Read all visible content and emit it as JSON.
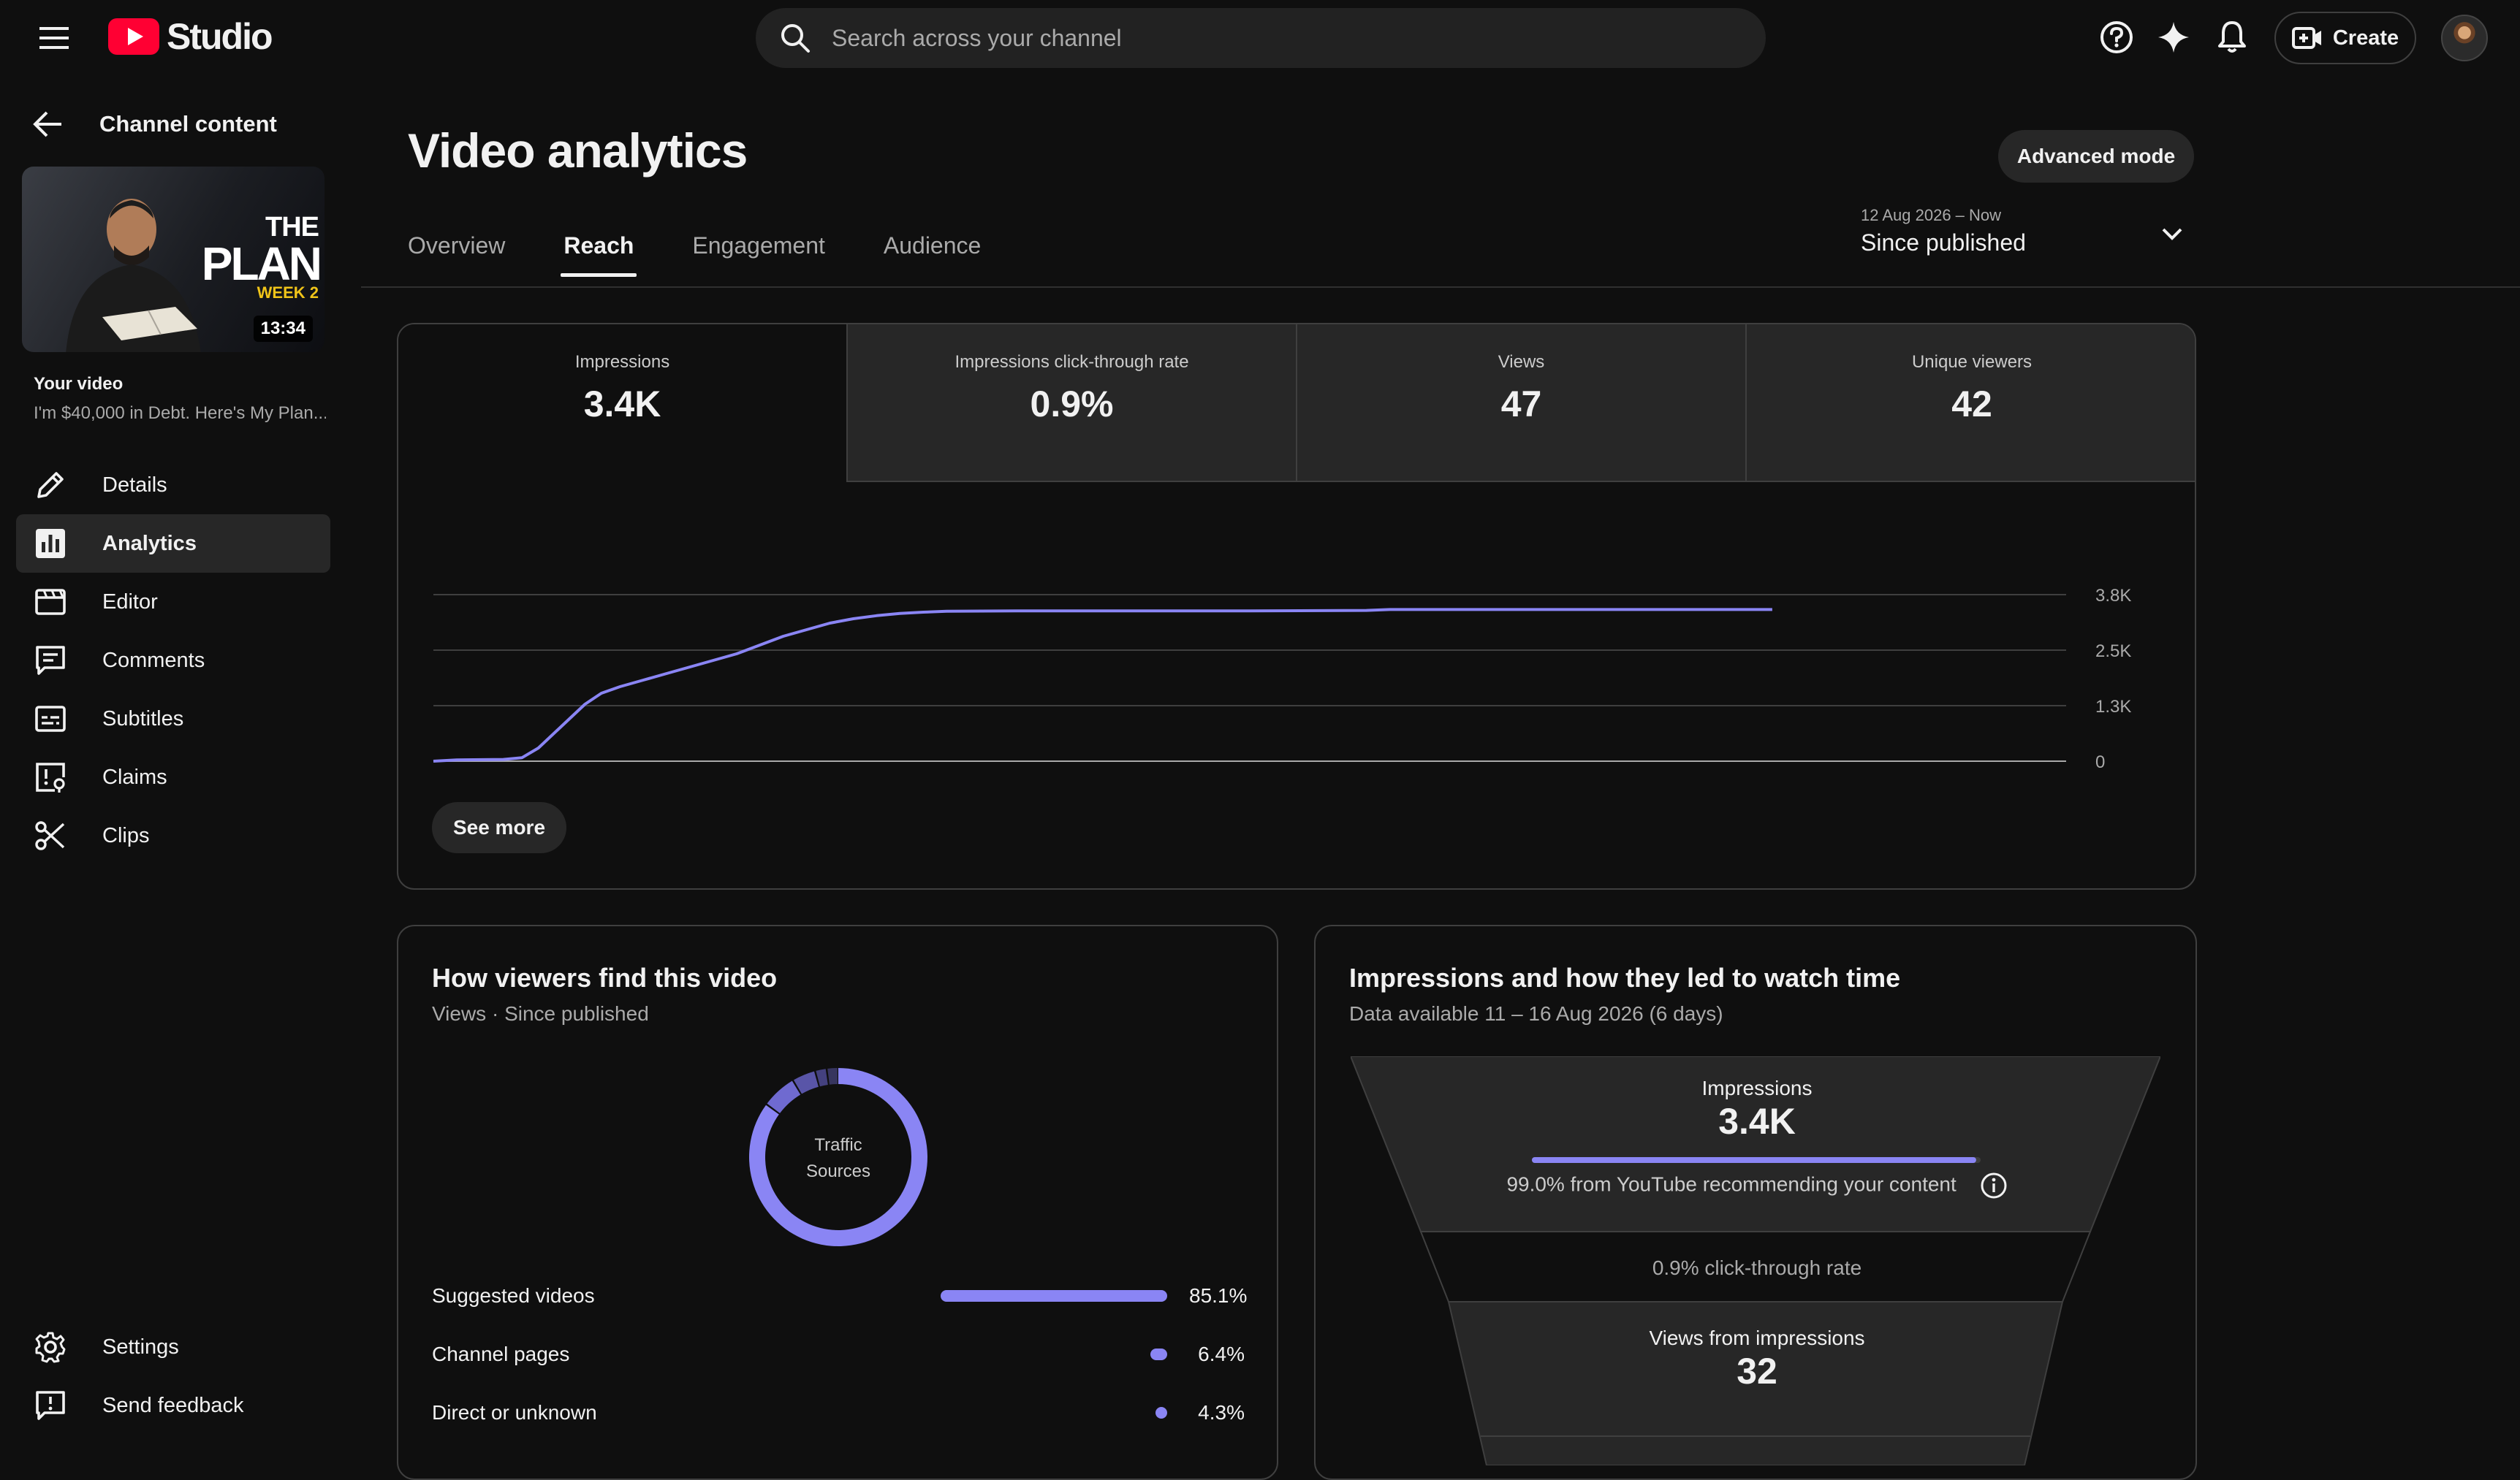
{
  "app": {
    "brand": "Studio",
    "search_placeholder": "Search across your channel",
    "create_label": "Create"
  },
  "sidebar": {
    "back_label": "Channel content",
    "thumbnail": {
      "line1": "THE",
      "line2": "PLAN",
      "line3": "WEEK 2",
      "duration": "13:34"
    },
    "your_video_label": "Your video",
    "video_title": "I'm $40,000 in Debt. Here's My Plan",
    "items": [
      {
        "label": "Details",
        "icon": "pencil-icon",
        "active": false
      },
      {
        "label": "Analytics",
        "icon": "analytics-icon",
        "active": true
      },
      {
        "label": "Editor",
        "icon": "editor-icon",
        "active": false
      },
      {
        "label": "Comments",
        "icon": "comments-icon",
        "active": false
      },
      {
        "label": "Subtitles",
        "icon": "subtitles-icon",
        "active": false
      },
      {
        "label": "Claims",
        "icon": "claims-icon",
        "active": false
      },
      {
        "label": "Clips",
        "icon": "scissors-icon",
        "active": false
      }
    ],
    "bottom_items": [
      {
        "label": "Settings",
        "icon": "gear-icon"
      },
      {
        "label": "Send feedback",
        "icon": "feedback-icon"
      }
    ]
  },
  "main": {
    "title": "Video analytics",
    "advanced_mode_label": "Advanced mode",
    "tabs": [
      {
        "label": "Overview",
        "active": false
      },
      {
        "label": "Reach",
        "active": true
      },
      {
        "label": "Engagement",
        "active": false
      },
      {
        "label": "Audience",
        "active": false
      }
    ],
    "date_range": {
      "small": "12 Aug 2026 – Now",
      "big": "Since published"
    }
  },
  "reach": {
    "metrics": [
      {
        "label": "Impressions",
        "value": "3.4K",
        "selected": true
      },
      {
        "label": "Impressions click-through rate",
        "value": "0.9%",
        "selected": false
      },
      {
        "label": "Views",
        "value": "47",
        "selected": false
      },
      {
        "label": "Unique viewers",
        "value": "42",
        "selected": false
      }
    ],
    "see_more_label": "See more"
  },
  "chart_data": {
    "type": "line",
    "title": "",
    "xlabel": "",
    "ylabel": "",
    "xlim": [
      0,
      7
    ],
    "ylim": [
      0,
      3800
    ],
    "x_ticks": [
      "0",
      "1",
      "2",
      "3",
      "4",
      "5",
      "6",
      "7 days"
    ],
    "y_ticks": [
      {
        "value": 0,
        "label": "0"
      },
      {
        "value": 1267,
        "label": "1.3K"
      },
      {
        "value": 2533,
        "label": "2.5K"
      },
      {
        "value": 3800,
        "label": "3.8K"
      }
    ],
    "grid": true,
    "series": [
      {
        "color": "#8a85f4",
        "x": [
          0,
          0.1,
          0.3,
          0.38,
          0.45,
          0.55,
          0.65,
          0.72,
          0.8,
          0.9,
          1.0,
          1.1,
          1.2,
          1.3,
          1.4,
          1.5,
          1.6,
          1.7,
          1.8,
          1.9,
          2.0,
          2.1,
          2.2,
          2.5,
          3.0,
          3.5,
          4.0,
          4.1,
          4.5,
          5.0,
          5.5,
          5.74
        ],
        "y": [
          0,
          30,
          40,
          80,
          300,
          800,
          1300,
          1550,
          1700,
          1850,
          2000,
          2150,
          2300,
          2450,
          2650,
          2850,
          3000,
          3150,
          3250,
          3320,
          3370,
          3400,
          3420,
          3430,
          3430,
          3430,
          3440,
          3460,
          3460,
          3460,
          3460,
          3460
        ]
      }
    ]
  },
  "traffic": {
    "title": "How viewers find this video",
    "subtitle": "Views · Since published",
    "donut_label_line1": "Traffic",
    "donut_label_line2": "Sources",
    "donut_colors": [
      "#8a85f4",
      "#6f6ad0",
      "#5955a8",
      "#44417f",
      "#37355f"
    ],
    "sources": [
      {
        "label": "Suggested videos",
        "value": 85.1,
        "pct": "85.1%"
      },
      {
        "label": "Channel pages",
        "value": 6.4,
        "pct": "6.4%"
      },
      {
        "label": "Direct or unknown",
        "value": 4.3,
        "pct": "4.3%"
      }
    ],
    "other_segments": [
      2.1,
      2.1
    ]
  },
  "funnel": {
    "title": "Impressions and how they led to watch time",
    "subtitle": "Data available 11 – 16 Aug 2026 (6 days)",
    "impressions_label": "Impressions",
    "impressions_value": "3.4K",
    "recommend_fraction": 0.99,
    "recommend_text": "99.0% from YouTube recommending your content",
    "ctr_text": "0.9% click-through rate",
    "views_label": "Views from impressions",
    "views_value": "32"
  }
}
